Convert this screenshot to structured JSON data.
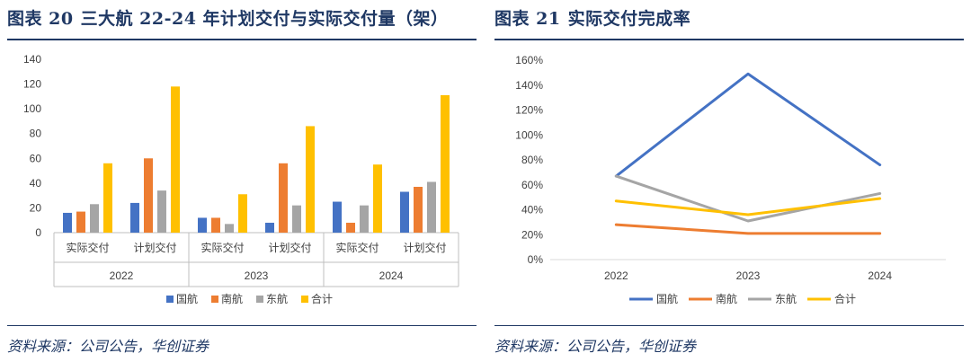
{
  "figures": {
    "left": {
      "label": "图表 20",
      "title": "三大航 22-24 年计划交付与实际交付量（架）",
      "source": "资料来源：公司公告，华创证券"
    },
    "right": {
      "label": "图表 21",
      "title": "实际交付完成率",
      "source": "资料来源：公司公告，华创证券"
    }
  },
  "chart_data": [
    {
      "type": "bar",
      "title": "",
      "groups": [
        "2022",
        "2023",
        "2024"
      ],
      "subcategories": [
        "实际交付",
        "计划交付"
      ],
      "series": [
        {
          "name": "国航",
          "color": "#4472c4",
          "values": [
            16,
            24,
            12,
            8,
            25,
            33
          ]
        },
        {
          "name": "南航",
          "color": "#ed7d31",
          "values": [
            17,
            60,
            12,
            56,
            8,
            37
          ]
        },
        {
          "name": "东航",
          "color": "#a5a5a5",
          "values": [
            23,
            34,
            7,
            22,
            22,
            41
          ]
        },
        {
          "name": "合计",
          "color": "#ffc000",
          "values": [
            56,
            118,
            31,
            86,
            55,
            111
          ]
        }
      ],
      "ylim": [
        0,
        140
      ],
      "yticks": [
        0,
        20,
        40,
        60,
        80,
        100,
        120,
        140
      ],
      "legend_position": "bottom",
      "grid": false
    },
    {
      "type": "line",
      "title": "",
      "x": [
        "2022",
        "2023",
        "2024"
      ],
      "series": [
        {
          "name": "国航",
          "color": "#4472c4",
          "values": [
            0.67,
            1.49,
            0.76
          ]
        },
        {
          "name": "南航",
          "color": "#ed7d31",
          "values": [
            0.28,
            0.21,
            0.21
          ]
        },
        {
          "name": "东航",
          "color": "#a5a5a5",
          "values": [
            0.67,
            0.31,
            0.53
          ]
        },
        {
          "name": "合计",
          "color": "#ffc000",
          "values": [
            0.47,
            0.36,
            0.49
          ]
        }
      ],
      "ylim": [
        0,
        1.6
      ],
      "ytick_labels": [
        "0%",
        "20%",
        "40%",
        "60%",
        "80%",
        "100%",
        "120%",
        "140%",
        "160%"
      ],
      "legend_position": "bottom",
      "grid": false
    }
  ]
}
